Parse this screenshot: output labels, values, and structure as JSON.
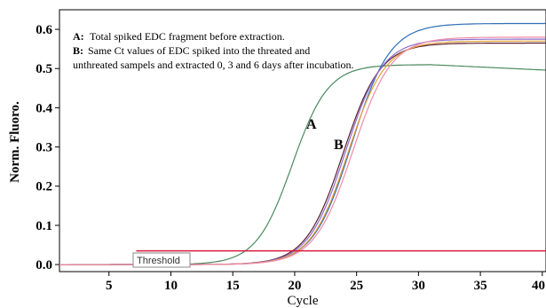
{
  "chart_data": {
    "type": "line",
    "xlabel": "Cycle",
    "ylabel": "Norm. Fluoro.",
    "xlim": [
      1,
      40
    ],
    "ylim": [
      0,
      0.65
    ],
    "x_ticks": [
      5,
      10,
      15,
      20,
      25,
      30,
      35,
      40
    ],
    "x_tick_labels": [
      "5",
      "10",
      "15",
      "20",
      "25",
      "30",
      "35",
      "40"
    ],
    "y_ticks": [
      0.0,
      0.1,
      0.2,
      0.3,
      0.4,
      0.5,
      0.6
    ],
    "y_tick_labels": [
      "0.0",
      "0.1",
      "0.2",
      "0.3",
      "0.4",
      "0.5",
      "0.6"
    ],
    "grid": false,
    "annotations": {
      "a_key": "A:",
      "a_text": "Total spiked EDC fragment before extraction.",
      "b_key": "B:",
      "b_text_line1": "Same Ct values of EDC spiked into the threated and",
      "b_text_line2": "unthreated sampels and extracted 0, 3 and 6 days after incubation."
    },
    "curve_labels": {
      "a": "A",
      "b": "B"
    },
    "threshold": {
      "label": "Threshold",
      "value": 0.035,
      "color": "#d81b3c"
    },
    "series": [
      {
        "id": "A",
        "color": "#4a8a5c",
        "curve": {
          "max": 0.51,
          "mid": 19.8,
          "slope": 1.45
        }
      },
      {
        "id": "B1",
        "color": "#2f6fb5",
        "curve": {
          "max": 0.615,
          "mid": 24.6,
          "slope": 1.55
        }
      },
      {
        "id": "B2",
        "color": "#5a1e2e",
        "curve": {
          "max": 0.565,
          "mid": 23.9,
          "slope": 1.5
        }
      },
      {
        "id": "B3",
        "color": "#8c6fcf",
        "curve": {
          "max": 0.575,
          "mid": 24.1,
          "slope": 1.5
        }
      },
      {
        "id": "B4",
        "color": "#e4a23a",
        "curve": {
          "max": 0.57,
          "mid": 24.3,
          "slope": 1.5
        }
      },
      {
        "id": "B5",
        "color": "#f08aa8",
        "curve": {
          "max": 0.58,
          "mid": 24.7,
          "slope": 1.55
        }
      }
    ]
  }
}
